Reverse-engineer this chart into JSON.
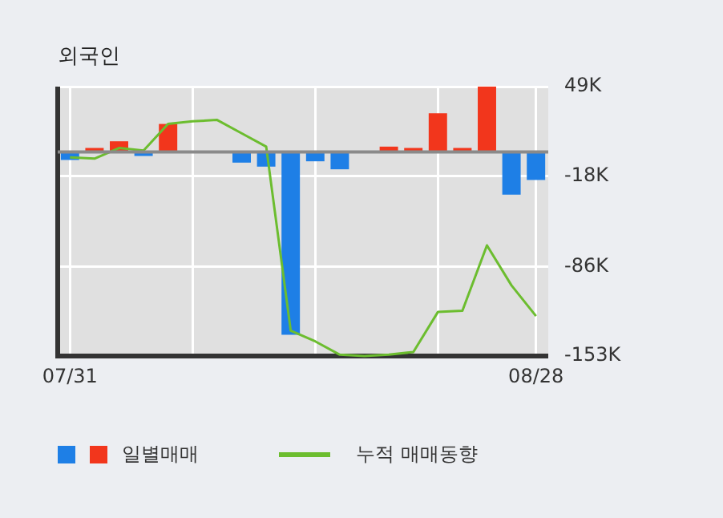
{
  "chart_data": {
    "type": "bar",
    "title": "외국인",
    "categories": [
      "07/31",
      null,
      null,
      null,
      null,
      null,
      null,
      null,
      null,
      null,
      null,
      null,
      null,
      null,
      null,
      null,
      null,
      null,
      null,
      "08/28"
    ],
    "series": [
      {
        "name": "일별매매",
        "values": [
          -6,
          3,
          8,
          -3,
          21,
          0,
          0,
          -8,
          -11,
          -137,
          -7,
          -13,
          0,
          4,
          3,
          29,
          3,
          49,
          -32,
          -21
        ],
        "colors": [
          "#1e7fe6",
          "#f2361c",
          "#f2361c",
          "#1e7fe6",
          "#f2361c",
          "#f2361c",
          "#f2361c",
          "#1e7fe6",
          "#1e7fe6",
          "#1e7fe6",
          "#1e7fe6",
          "#1e7fe6",
          "#f2361c",
          "#f2361c",
          "#f2361c",
          "#f2361c",
          "#f2361c",
          "#f2361c",
          "#1e7fe6",
          "#1e7fe6"
        ]
      },
      {
        "name": "누적 매매동향",
        "type": "line",
        "color": "#6cbd2f",
        "values": [
          -4,
          -5,
          3,
          1,
          21,
          23,
          24,
          14,
          4,
          -134,
          -142,
          -152,
          -153,
          -152,
          -150,
          -120,
          -119,
          -70,
          -100,
          -123
        ]
      }
    ],
    "ylim": [
      -153,
      49
    ],
    "yticks": [
      {
        "value": 49,
        "label": "49K"
      },
      {
        "value": -18,
        "label": "-18K"
      },
      {
        "value": -86,
        "label": "-86K"
      },
      {
        "value": -153,
        "label": "-153K"
      }
    ],
    "grid": true,
    "legend": "bottom",
    "marker": "none",
    "line_style": "solid"
  }
}
